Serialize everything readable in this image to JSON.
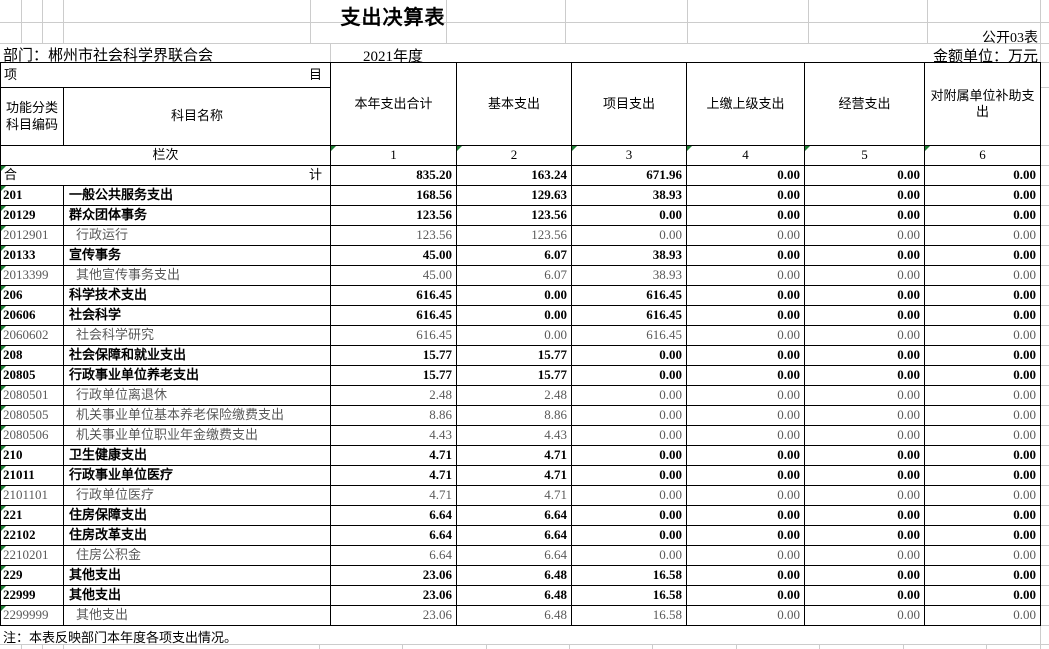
{
  "title": "支出决算表",
  "meta": {
    "sheet_no": "公开03表",
    "department": "部门：郴州市社会科学界联合会",
    "year": "2021年度",
    "unit": "金额单位：万元"
  },
  "table": {
    "item_header_left": "项",
    "item_header_right": "目",
    "code_header_line1": "功能分类",
    "code_header_line2": "科目编码",
    "name_header": "科目名称",
    "value_headers": [
      "本年支出合计",
      "基本支出",
      "项目支出",
      "上缴上级支出",
      "经营支出",
      "对附属单位补助支出"
    ],
    "lanci_label": "栏次",
    "column_numbers": [
      "1",
      "2",
      "3",
      "4",
      "5",
      "6"
    ],
    "total_row": {
      "label_left": "合",
      "label_right": "计",
      "values": [
        "835.20",
        "163.24",
        "671.96",
        "0.00",
        "0.00",
        "0.00"
      ]
    },
    "rows": [
      {
        "code": "201",
        "name": "一般公共服务支出",
        "style": "bold",
        "values": [
          "168.56",
          "129.63",
          "38.93",
          "0.00",
          "0.00",
          "0.00"
        ]
      },
      {
        "code": "20129",
        "name": "群众团体事务",
        "style": "bold",
        "values": [
          "123.56",
          "123.56",
          "0.00",
          "0.00",
          "0.00",
          "0.00"
        ]
      },
      {
        "code": "2012901",
        "name": "行政运行",
        "style": "detail",
        "values": [
          "123.56",
          "123.56",
          "0.00",
          "0.00",
          "0.00",
          "0.00"
        ]
      },
      {
        "code": "20133",
        "name": "宣传事务",
        "style": "bold",
        "values": [
          "45.00",
          "6.07",
          "38.93",
          "0.00",
          "0.00",
          "0.00"
        ]
      },
      {
        "code": "2013399",
        "name": "其他宣传事务支出",
        "style": "detail",
        "values": [
          "45.00",
          "6.07",
          "38.93",
          "0.00",
          "0.00",
          "0.00"
        ]
      },
      {
        "code": "206",
        "name": "科学技术支出",
        "style": "bold",
        "values": [
          "616.45",
          "0.00",
          "616.45",
          "0.00",
          "0.00",
          "0.00"
        ]
      },
      {
        "code": "20606",
        "name": "社会科学",
        "style": "bold",
        "values": [
          "616.45",
          "0.00",
          "616.45",
          "0.00",
          "0.00",
          "0.00"
        ]
      },
      {
        "code": "2060602",
        "name": "社会科学研究",
        "style": "detail",
        "values": [
          "616.45",
          "0.00",
          "616.45",
          "0.00",
          "0.00",
          "0.00"
        ]
      },
      {
        "code": "208",
        "name": "社会保障和就业支出",
        "style": "bold",
        "values": [
          "15.77",
          "15.77",
          "0.00",
          "0.00",
          "0.00",
          "0.00"
        ]
      },
      {
        "code": "20805",
        "name": "行政事业单位养老支出",
        "style": "bold",
        "values": [
          "15.77",
          "15.77",
          "0.00",
          "0.00",
          "0.00",
          "0.00"
        ]
      },
      {
        "code": "2080501",
        "name": "行政单位离退休",
        "style": "detail",
        "values": [
          "2.48",
          "2.48",
          "0.00",
          "0.00",
          "0.00",
          "0.00"
        ]
      },
      {
        "code": "2080505",
        "name": "机关事业单位基本养老保险缴费支出",
        "style": "detail",
        "values": [
          "8.86",
          "8.86",
          "0.00",
          "0.00",
          "0.00",
          "0.00"
        ]
      },
      {
        "code": "2080506",
        "name": "机关事业单位职业年金缴费支出",
        "style": "detail",
        "values": [
          "4.43",
          "4.43",
          "0.00",
          "0.00",
          "0.00",
          "0.00"
        ]
      },
      {
        "code": "210",
        "name": "卫生健康支出",
        "style": "bold",
        "values": [
          "4.71",
          "4.71",
          "0.00",
          "0.00",
          "0.00",
          "0.00"
        ]
      },
      {
        "code": "21011",
        "name": "行政事业单位医疗",
        "style": "bold",
        "values": [
          "4.71",
          "4.71",
          "0.00",
          "0.00",
          "0.00",
          "0.00"
        ]
      },
      {
        "code": "2101101",
        "name": "行政单位医疗",
        "style": "detail",
        "values": [
          "4.71",
          "4.71",
          "0.00",
          "0.00",
          "0.00",
          "0.00"
        ]
      },
      {
        "code": "221",
        "name": "住房保障支出",
        "style": "bold",
        "values": [
          "6.64",
          "6.64",
          "0.00",
          "0.00",
          "0.00",
          "0.00"
        ]
      },
      {
        "code": "22102",
        "name": "住房改革支出",
        "style": "bold",
        "values": [
          "6.64",
          "6.64",
          "0.00",
          "0.00",
          "0.00",
          "0.00"
        ]
      },
      {
        "code": "2210201",
        "name": "住房公积金",
        "style": "detail",
        "values": [
          "6.64",
          "6.64",
          "0.00",
          "0.00",
          "0.00",
          "0.00"
        ]
      },
      {
        "code": "229",
        "name": "其他支出",
        "style": "bold",
        "values": [
          "23.06",
          "6.48",
          "16.58",
          "0.00",
          "0.00",
          "0.00"
        ]
      },
      {
        "code": "22999",
        "name": "其他支出",
        "style": "bold",
        "values": [
          "23.06",
          "6.48",
          "16.58",
          "0.00",
          "0.00",
          "0.00"
        ]
      },
      {
        "code": "2299999",
        "name": "其他支出",
        "style": "detail",
        "values": [
          "23.06",
          "6.48",
          "16.58",
          "0.00",
          "0.00",
          "0.00"
        ]
      }
    ]
  },
  "note": "注：本表反映部门本年度各项支出情况。",
  "colors": {
    "error_indicator_green": "#1d7d33",
    "detail_text_gray": "#595959",
    "grid_light": "#cccccc",
    "border_black": "#000000"
  }
}
